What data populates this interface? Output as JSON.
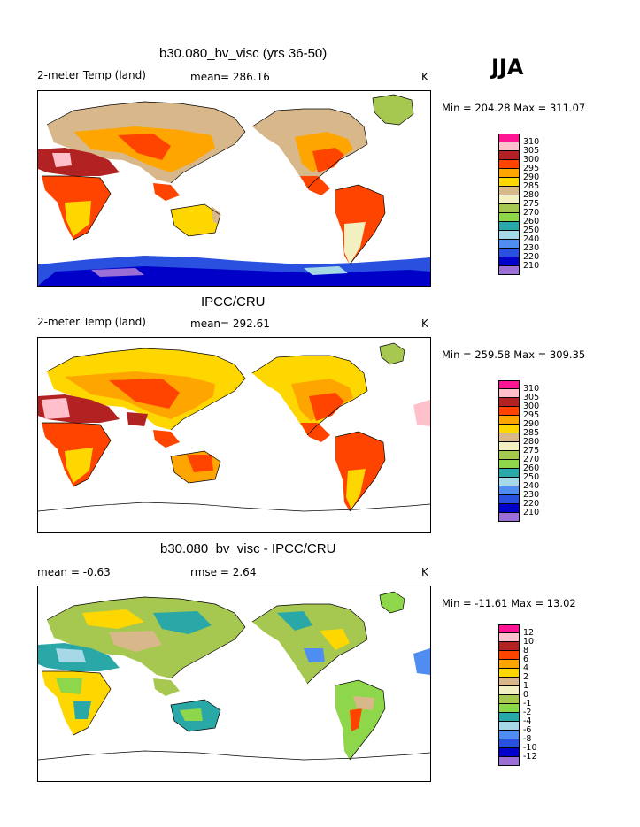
{
  "season": "JJA",
  "colors": {
    "abs_scale": [
      "#9b6fd6",
      "#0000c8",
      "#2a50e0",
      "#4f8ef0",
      "#a6d8e8",
      "#2aa8a8",
      "#8ed64a",
      "#a6c850",
      "#f2efc0",
      "#d8b88a",
      "#ffd700",
      "#ffa500",
      "#ff4400",
      "#b22222",
      "#ffc0cb",
      "#ff1493"
    ],
    "diff_scale": [
      "#9b6fd6",
      "#0000c8",
      "#2a50e0",
      "#4f8ef0",
      "#a6d8e8",
      "#2aa8a8",
      "#8ed64a",
      "#a6c850",
      "#f2efc0",
      "#d8b88a",
      "#ffd700",
      "#ffa500",
      "#ff4400",
      "#b22222",
      "#ffc0cb",
      "#ff1493"
    ]
  },
  "panels": [
    {
      "id": "model",
      "title": "b30.080_bv_visc (yrs 36-50)",
      "left_label": "2-meter Temp (land)",
      "mid_label": "mean= 286.16",
      "unit": "K",
      "minmax": "Min = 204.28 Max = 311.07",
      "legend_labels": [
        "310",
        "305",
        "300",
        "295",
        "290",
        "285",
        "280",
        "275",
        "270",
        "260",
        "250",
        "240",
        "230",
        "220",
        "210"
      ]
    },
    {
      "id": "obs",
      "title": "IPCC/CRU",
      "left_label": "2-meter Temp (land)",
      "mid_label": "mean= 292.61",
      "unit": "K",
      "minmax": "Min = 259.58 Max = 309.35",
      "legend_labels": [
        "310",
        "305",
        "300",
        "295",
        "290",
        "285",
        "280",
        "275",
        "270",
        "260",
        "250",
        "240",
        "230",
        "220",
        "210"
      ]
    },
    {
      "id": "diff",
      "title": "b30.080_bv_visc - IPCC/CRU",
      "left_label": "mean =   -0.63",
      "mid_label": "rmse =    2.64",
      "unit": "K",
      "minmax": "Min = -11.61 Max =  13.02",
      "legend_labels": [
        "12",
        "10",
        "8",
        "6",
        "4",
        "2",
        "1",
        "0",
        "-1",
        "-2",
        "-4",
        "-6",
        "-8",
        "-10",
        "-12"
      ]
    }
  ]
}
